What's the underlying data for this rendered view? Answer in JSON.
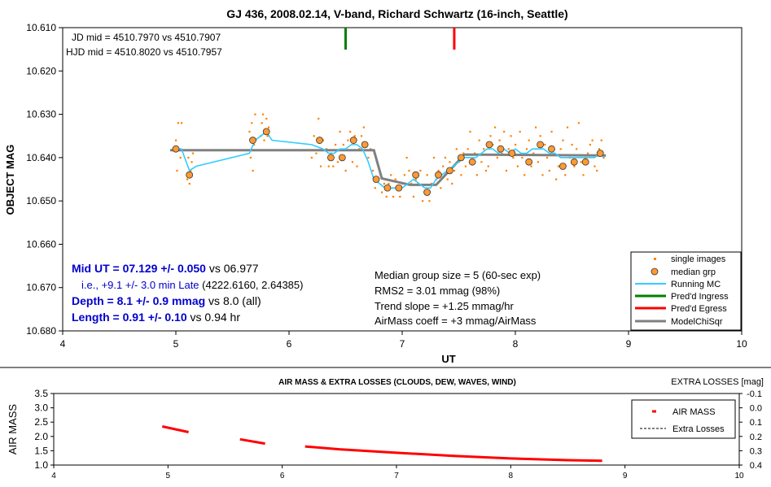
{
  "chart_data": [
    {
      "type": "scatter",
      "title": "GJ 436, 2008.02.14, V-band, Richard Schwartz (16-inch, Seattle)",
      "xlabel": "UT",
      "ylabel": "OBJECT MAG",
      "xlim": [
        4,
        10
      ],
      "ylim": [
        10.61,
        10.68
      ],
      "y_inverted": true,
      "grid": "none",
      "x_ticks": [
        "4",
        "5",
        "6",
        "7",
        "8",
        "9",
        "10"
      ],
      "y_ticks": [
        "10.610",
        "10.620",
        "10.630",
        "10.640",
        "10.650",
        "10.660",
        "10.670",
        "10.680"
      ],
      "legend_position": "bottom-right",
      "legend": [
        "single images",
        "median grp",
        "Running MC",
        "Pred'd Ingress",
        "Pred'd Egress",
        "ModelChiSqr"
      ],
      "annotations": {
        "jd": "JD mid = 4510.7970 vs 4510.7907",
        "hjd": "HJD mid = 4510.8020 vs 4510.7957",
        "mid_value": "Mid UT = 07.129 +/- 0.050",
        "mid_vs": " vs 06.977",
        "late": "i.e., +9.1 +/- 3.0 min Late",
        "late_extra": " (4222.6160, 2.64385)",
        "depth_value": "Depth = 8.1 +/- 0.9 mmag",
        "depth_vs": " vs 8.0 (all)",
        "length_value": "Length = 0.91 +/- 0.10",
        "length_vs": " vs 0.94 hr",
        "stat1": "Median group size = 5 (60-sec exp)",
        "stat2": "RMS2 = 3.01 mmag (98%)",
        "stat3": "Trend slope = +1.25 mmag/hr",
        "stat4": "AirMass coeff = +3 mmag/AirMass"
      },
      "pred_ingress_x": 6.5,
      "pred_egress_x": 7.46,
      "series": [
        {
          "name": "single images",
          "color": "#ff8000",
          "x": [
            5.0,
            5.01,
            5.02,
            5.03,
            5.04,
            5.05,
            5.1,
            5.11,
            5.12,
            5.13,
            5.14,
            5.15,
            5.65,
            5.66,
            5.67,
            5.68,
            5.69,
            5.7,
            5.75,
            5.76,
            5.77,
            5.78,
            5.79,
            5.8,
            5.81,
            5.82,
            6.2,
            6.22,
            6.24,
            6.26,
            6.28,
            6.3,
            6.33,
            6.35,
            6.37,
            6.39,
            6.41,
            6.43,
            6.45,
            6.48,
            6.5,
            6.52,
            6.54,
            6.56,
            6.58,
            6.6,
            6.62,
            6.64,
            6.66,
            6.68,
            6.7,
            6.72,
            6.74,
            6.76,
            6.78,
            6.8,
            6.82,
            6.84,
            6.86,
            6.88,
            6.9,
            6.92,
            6.94,
            6.96,
            6.98,
            7.0,
            7.02,
            7.04,
            7.06,
            7.08,
            7.1,
            7.12,
            7.14,
            7.16,
            7.18,
            7.2,
            7.22,
            7.24,
            7.26,
            7.28,
            7.3,
            7.32,
            7.34,
            7.36,
            7.38,
            7.4,
            7.42,
            7.44,
            7.46,
            7.48,
            7.5,
            7.52,
            7.54,
            7.56,
            7.58,
            7.6,
            7.62,
            7.64,
            7.66,
            7.68,
            7.7,
            7.72,
            7.74,
            7.76,
            7.78,
            7.8,
            7.82,
            7.84,
            7.86,
            7.88,
            7.9,
            7.92,
            7.94,
            7.96,
            7.98,
            8.0,
            8.02,
            8.04,
            8.06,
            8.08,
            8.1,
            8.12,
            8.14,
            8.16,
            8.18,
            8.2,
            8.22,
            8.24,
            8.26,
            8.28,
            8.3,
            8.32,
            8.34,
            8.36,
            8.38,
            8.4,
            8.42,
            8.44,
            8.46,
            8.48,
            8.5,
            8.52,
            8.54,
            8.56,
            8.58,
            8.6,
            8.62,
            8.64,
            8.66,
            8.68,
            8.7,
            8.72,
            8.74,
            8.76,
            8.78
          ],
          "y": [
            10.636,
            10.643,
            10.632,
            10.638,
            10.64,
            10.632,
            10.645,
            10.64,
            10.646,
            10.643,
            10.641,
            10.639,
            10.634,
            10.64,
            10.632,
            10.643,
            10.637,
            10.63,
            10.635,
            10.632,
            10.63,
            10.636,
            10.634,
            10.631,
            10.635,
            10.633,
            10.64,
            10.635,
            10.639,
            10.631,
            10.642,
            10.636,
            10.638,
            10.642,
            10.639,
            10.642,
            10.637,
            10.641,
            10.634,
            10.637,
            10.643,
            10.636,
            10.634,
            10.641,
            10.635,
            10.642,
            10.638,
            10.635,
            10.633,
            10.637,
            10.64,
            10.638,
            10.643,
            10.647,
            10.645,
            10.643,
            10.648,
            10.646,
            10.649,
            10.646,
            10.644,
            10.649,
            10.645,
            10.647,
            10.649,
            10.646,
            10.644,
            10.64,
            10.643,
            10.646,
            10.649,
            10.645,
            10.646,
            10.643,
            10.65,
            10.648,
            10.644,
            10.65,
            10.646,
            10.64,
            10.645,
            10.643,
            10.647,
            10.642,
            10.64,
            10.645,
            10.641,
            10.646,
            10.643,
            10.638,
            10.641,
            10.644,
            10.639,
            10.642,
            10.638,
            10.634,
            10.641,
            10.639,
            10.644,
            10.636,
            10.641,
            10.638,
            10.643,
            10.642,
            10.635,
            10.637,
            10.633,
            10.64,
            10.636,
            10.639,
            10.634,
            10.643,
            10.638,
            10.635,
            10.64,
            10.637,
            10.642,
            10.634,
            10.64,
            10.644,
            10.638,
            10.636,
            10.642,
            10.639,
            10.633,
            10.641,
            10.635,
            10.644,
            10.637,
            10.64,
            10.643,
            10.634,
            10.639,
            10.645,
            10.642,
            10.638,
            10.636,
            10.644,
            10.633,
            10.64,
            10.637,
            10.642,
            10.638,
            10.632,
            10.641,
            10.644,
            10.64,
            10.639,
            10.637,
            10.636,
            10.642,
            10.643,
            10.638,
            10.636,
            10.64
          ]
        },
        {
          "name": "median grp",
          "color": "#ff9933",
          "x": [
            5.0,
            5.12,
            5.68,
            5.8,
            6.27,
            6.37,
            6.47,
            6.57,
            6.67,
            6.77,
            6.87,
            6.97,
            7.12,
            7.22,
            7.32,
            7.42,
            7.52,
            7.62,
            7.77,
            7.87,
            7.97,
            8.12,
            8.22,
            8.32,
            8.42,
            8.52,
            8.62,
            8.75
          ],
          "y": [
            10.638,
            10.644,
            10.636,
            10.634,
            10.636,
            10.64,
            10.64,
            10.636,
            10.637,
            10.645,
            10.647,
            10.647,
            10.644,
            10.648,
            10.644,
            10.643,
            10.64,
            10.641,
            10.637,
            10.638,
            10.639,
            10.641,
            10.637,
            10.638,
            10.642,
            10.641,
            10.641,
            10.639
          ]
        },
        {
          "name": "Running MC",
          "color": "#33ccff",
          "x": [
            5.0,
            5.05,
            5.12,
            5.18,
            5.65,
            5.7,
            5.75,
            5.8,
            5.85,
            6.2,
            6.3,
            6.35,
            6.4,
            6.45,
            6.5,
            6.55,
            6.6,
            6.65,
            6.7,
            6.75,
            6.8,
            6.85,
            6.9,
            6.95,
            7.0,
            7.05,
            7.1,
            7.15,
            7.2,
            7.25,
            7.3,
            7.35,
            7.4,
            7.45,
            7.5,
            7.55,
            7.6,
            7.65,
            7.7,
            7.75,
            7.8,
            7.85,
            7.9,
            7.95,
            8.0,
            8.05,
            8.1,
            8.15,
            8.2,
            8.25,
            8.3,
            8.35,
            8.4,
            8.45,
            8.5,
            8.55,
            8.6,
            8.65,
            8.7,
            8.75,
            8.78
          ],
          "y": [
            10.638,
            10.638,
            10.643,
            10.642,
            10.639,
            10.636,
            10.635,
            10.634,
            10.636,
            10.637,
            10.638,
            10.639,
            10.639,
            10.638,
            10.638,
            10.637,
            10.637,
            10.638,
            10.641,
            10.645,
            10.646,
            10.647,
            10.647,
            10.647,
            10.647,
            10.646,
            10.645,
            10.646,
            10.647,
            10.647,
            10.645,
            10.644,
            10.643,
            10.642,
            10.641,
            10.64,
            10.64,
            10.64,
            10.639,
            10.638,
            10.638,
            10.639,
            10.638,
            10.639,
            10.638,
            10.639,
            10.639,
            10.638,
            10.638,
            10.638,
            10.639,
            10.639,
            10.64,
            10.64,
            10.64,
            10.64,
            10.64,
            10.64,
            10.64,
            10.639,
            10.64
          ]
        },
        {
          "name": "ModelChiSqr",
          "color": "#808080",
          "x": [
            4.95,
            6.75,
            6.82,
            7.07,
            7.3,
            7.55,
            8.8
          ],
          "y": [
            10.6383,
            10.6383,
            10.6448,
            10.6463,
            10.6463,
            10.6393,
            10.6395
          ]
        }
      ]
    },
    {
      "type": "line",
      "title": "AIR MASS & EXTRA LOSSES (CLOUDS, DEW, WAVES, WIND)",
      "ylabel": "AIR MASS",
      "y2label": "EXTRA LOSSES [mag]",
      "xlim": [
        4,
        10
      ],
      "ylim": [
        1.0,
        3.5
      ],
      "y2lim": [
        -0.1,
        0.4
      ],
      "grid": "none",
      "x_ticks": [
        "4",
        "5",
        "6",
        "7",
        "8",
        "9",
        "10"
      ],
      "y_ticks": [
        "1.0",
        "1.5",
        "2.0",
        "2.5",
        "3.0",
        "3.5"
      ],
      "y2_ticks": [
        "-0.1",
        "0.0",
        "0.1",
        "0.2",
        "0.3",
        "0.4"
      ],
      "legend_position": "top-right",
      "legend": [
        "AIR MASS",
        "Extra Losses"
      ],
      "series": [
        {
          "name": "AIR MASS",
          "color": "#ff0000",
          "segments": [
            {
              "x": [
                4.95,
                5.18
              ],
              "y": [
                2.35,
                2.15
              ]
            },
            {
              "x": [
                5.63,
                5.85
              ],
              "y": [
                1.9,
                1.75
              ]
            },
            {
              "x": [
                6.2,
                6.5,
                7.0,
                7.5,
                8.0,
                8.5,
                8.8
              ],
              "y": [
                1.65,
                1.55,
                1.43,
                1.32,
                1.23,
                1.17,
                1.15
              ]
            }
          ]
        },
        {
          "name": "Extra Losses",
          "color": "#000000",
          "segments": []
        }
      ]
    }
  ]
}
